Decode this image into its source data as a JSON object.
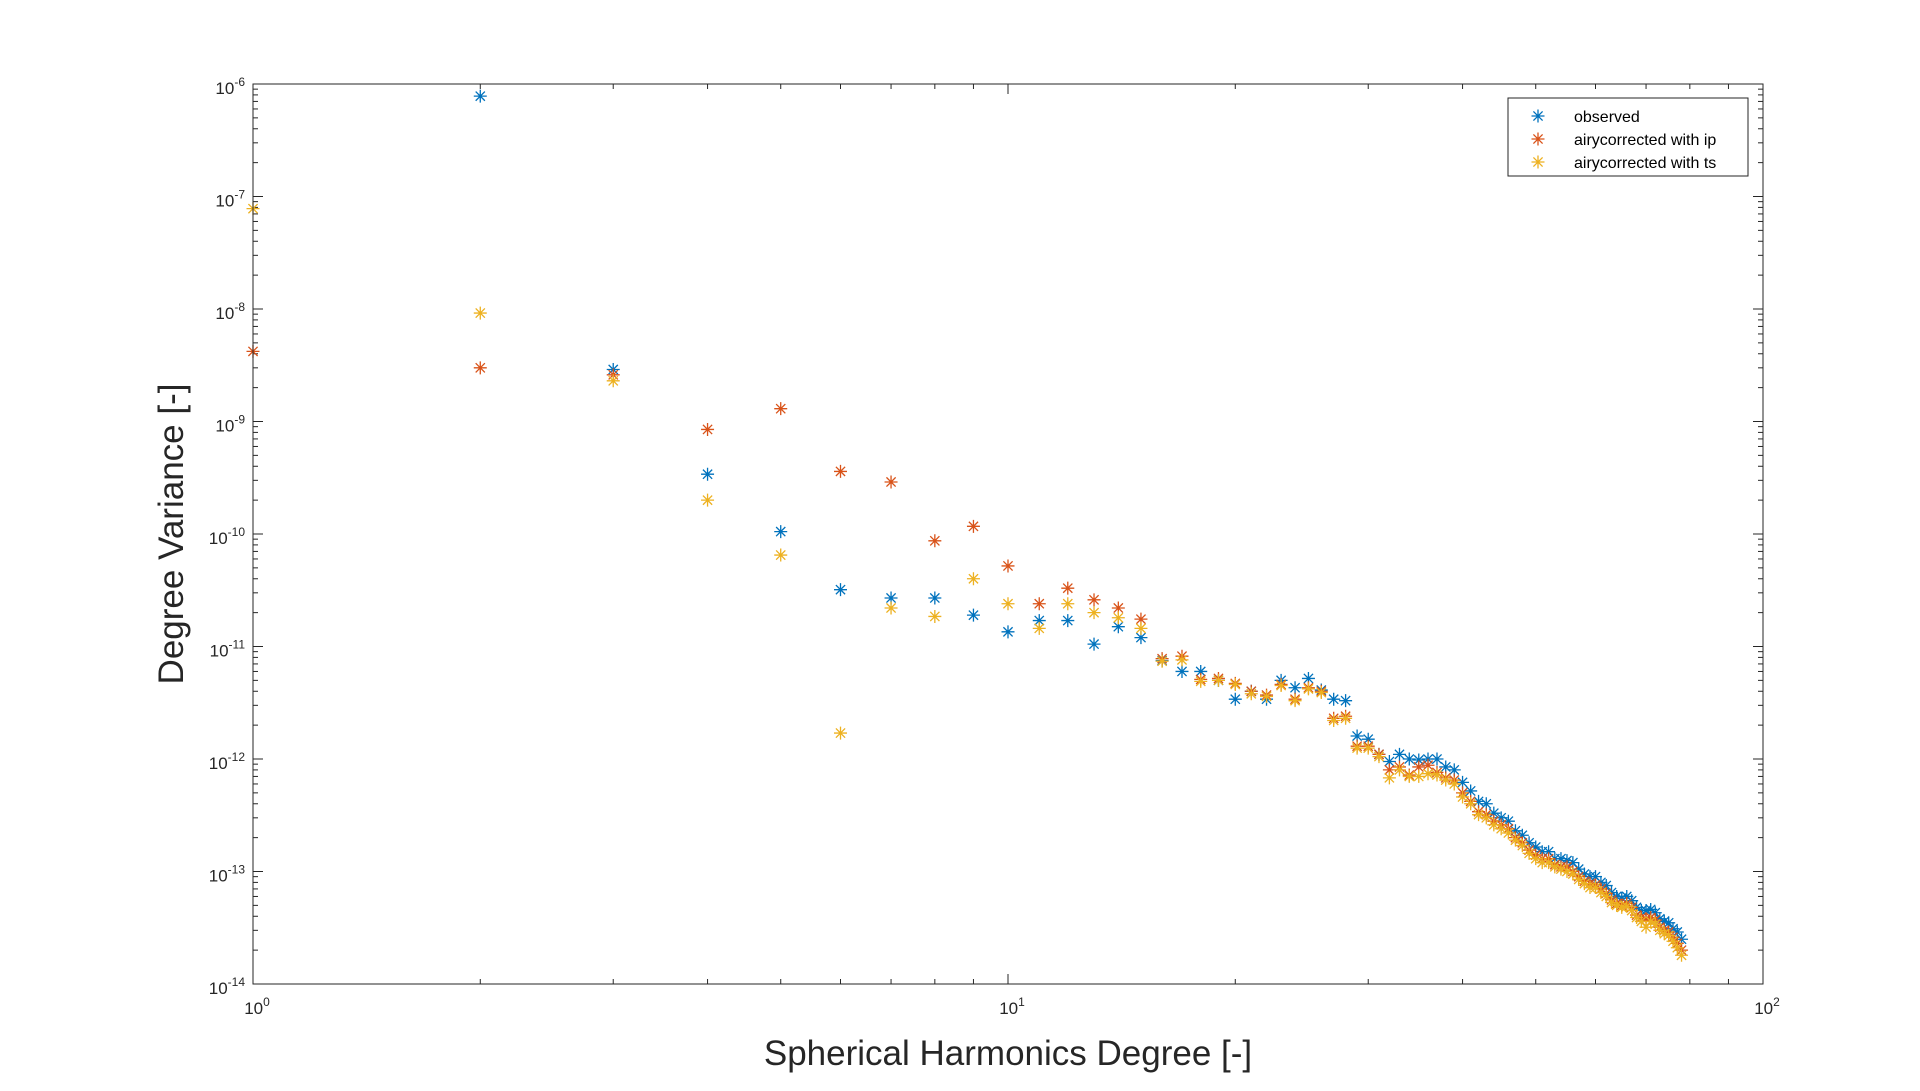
{
  "chart_data": {
    "type": "scatter",
    "title": "",
    "xlabel": "Spherical Harmonics Degree [-]",
    "ylabel": "Degree Variance [-]",
    "xscale": "log",
    "yscale": "log",
    "xlim": [
      1,
      100
    ],
    "ylim": [
      1e-14,
      1e-06
    ],
    "grid": false,
    "legend_position": "top-right",
    "marker": "asterisk",
    "x_ticks": [
      {
        "base": "10",
        "exp": "0",
        "value": 1
      },
      {
        "base": "10",
        "exp": "1",
        "value": 10
      },
      {
        "base": "10",
        "exp": "2",
        "value": 100
      }
    ],
    "y_ticks": [
      {
        "base": "10",
        "exp": "-6",
        "value": 1e-06
      },
      {
        "base": "10",
        "exp": "-7",
        "value": 1e-07
      },
      {
        "base": "10",
        "exp": "-8",
        "value": 1e-08
      },
      {
        "base": "10",
        "exp": "-9",
        "value": 1e-09
      },
      {
        "base": "10",
        "exp": "-10",
        "value": 1e-10
      },
      {
        "base": "10",
        "exp": "-11",
        "value": 1e-11
      },
      {
        "base": "10",
        "exp": "-12",
        "value": 1e-12
      },
      {
        "base": "10",
        "exp": "-13",
        "value": 1e-13
      },
      {
        "base": "10",
        "exp": "-14",
        "value": 1e-14
      }
    ],
    "series": [
      {
        "name": "observed",
        "color": "#0072BD",
        "points": [
          [
            2,
            7.8e-07
          ],
          [
            3,
            2.9e-09
          ],
          [
            4,
            3.4e-10
          ],
          [
            5,
            1.05e-10
          ],
          [
            6,
            3.2e-11
          ],
          [
            7,
            2.7e-11
          ],
          [
            8,
            2.7e-11
          ],
          [
            9,
            1.9e-11
          ],
          [
            10,
            1.35e-11
          ],
          [
            11,
            1.7e-11
          ],
          [
            12,
            1.7e-11
          ],
          [
            13,
            1.05e-11
          ],
          [
            14,
            1.5e-11
          ],
          [
            15,
            1.2e-11
          ],
          [
            16,
            7.5e-12
          ],
          [
            17,
            6e-12
          ],
          [
            18,
            6e-12
          ],
          [
            19,
            5e-12
          ],
          [
            20,
            3.4e-12
          ],
          [
            21,
            4e-12
          ],
          [
            22,
            3.4e-12
          ],
          [
            23,
            5e-12
          ],
          [
            24,
            4.3e-12
          ],
          [
            25,
            5.2e-12
          ],
          [
            26,
            4.1e-12
          ],
          [
            27,
            3.4e-12
          ],
          [
            28,
            3.3e-12
          ],
          [
            29,
            1.6e-12
          ],
          [
            30,
            1.5e-12
          ],
          [
            31,
            1.1e-12
          ],
          [
            32,
            9.5e-13
          ],
          [
            33,
            1.1e-12
          ],
          [
            34,
            1e-12
          ],
          [
            35,
            9.8e-13
          ],
          [
            36,
            1e-12
          ],
          [
            37,
            1e-12
          ],
          [
            38,
            8.5e-13
          ],
          [
            39,
            8e-13
          ],
          [
            40,
            6.2e-13
          ],
          [
            41,
            5.2e-13
          ],
          [
            42,
            4.2e-13
          ],
          [
            43,
            4e-13
          ],
          [
            44,
            3.3e-13
          ],
          [
            45,
            3e-13
          ],
          [
            46,
            2.8e-13
          ],
          [
            47,
            2.3e-13
          ],
          [
            48,
            2.1e-13
          ],
          [
            49,
            1.8e-13
          ],
          [
            50,
            1.65e-13
          ],
          [
            51,
            1.5e-13
          ],
          [
            52,
            1.5e-13
          ],
          [
            53,
            1.3e-13
          ],
          [
            54,
            1.3e-13
          ],
          [
            55,
            1.25e-13
          ],
          [
            56,
            1.2e-13
          ],
          [
            57,
            1.05e-13
          ],
          [
            58,
            9.5e-14
          ],
          [
            59,
            9e-14
          ],
          [
            60,
            9e-14
          ],
          [
            61,
            8e-14
          ],
          [
            62,
            7.5e-14
          ],
          [
            63,
            6.5e-14
          ],
          [
            64,
            6e-14
          ],
          [
            65,
            5.8e-14
          ],
          [
            66,
            6e-14
          ],
          [
            67,
            5.5e-14
          ],
          [
            68,
            4.8e-14
          ],
          [
            69,
            4.5e-14
          ],
          [
            70,
            4.5e-14
          ],
          [
            71,
            4.6e-14
          ],
          [
            72,
            4.3e-14
          ],
          [
            73,
            3.8e-14
          ],
          [
            74,
            3.6e-14
          ],
          [
            75,
            3.5e-14
          ],
          [
            76,
            3.1e-14
          ],
          [
            77,
            2.9e-14
          ],
          [
            78,
            2.5e-14
          ]
        ]
      },
      {
        "name": "airycorrected with ip",
        "color": "#D95319",
        "points": [
          [
            1,
            4.2e-09
          ],
          [
            2,
            3e-09
          ],
          [
            3,
            2.6e-09
          ],
          [
            4,
            8.5e-10
          ],
          [
            5,
            1.3e-09
          ],
          [
            6,
            3.6e-10
          ],
          [
            7,
            2.9e-10
          ],
          [
            8,
            8.7e-11
          ],
          [
            9,
            1.17e-10
          ],
          [
            10,
            5.2e-11
          ],
          [
            11,
            2.4e-11
          ],
          [
            12,
            3.3e-11
          ],
          [
            13,
            2.6e-11
          ],
          [
            14,
            2.2e-11
          ],
          [
            15,
            1.75e-11
          ],
          [
            16,
            7.8e-12
          ],
          [
            17,
            8.2e-12
          ],
          [
            18,
            5.1e-12
          ],
          [
            19,
            5.2e-12
          ],
          [
            20,
            4.7e-12
          ],
          [
            21,
            4e-12
          ],
          [
            22,
            3.7e-12
          ],
          [
            23,
            4.6e-12
          ],
          [
            24,
            3.4e-12
          ],
          [
            25,
            4.3e-12
          ],
          [
            26,
            4e-12
          ],
          [
            27,
            2.3e-12
          ],
          [
            28,
            2.4e-12
          ],
          [
            29,
            1.3e-12
          ],
          [
            30,
            1.3e-12
          ],
          [
            31,
            1.1e-12
          ],
          [
            32,
            8e-13
          ],
          [
            33,
            8.5e-13
          ],
          [
            34,
            7.2e-13
          ],
          [
            35,
            8.5e-13
          ],
          [
            36,
            8.8e-13
          ],
          [
            37,
            7.6e-13
          ],
          [
            38,
            6.8e-13
          ],
          [
            39,
            6.5e-13
          ],
          [
            40,
            5e-13
          ],
          [
            41,
            4.2e-13
          ],
          [
            42,
            3.4e-13
          ],
          [
            43,
            3.2e-13
          ],
          [
            44,
            2.8e-13
          ],
          [
            45,
            2.6e-13
          ],
          [
            46,
            2.4e-13
          ],
          [
            47,
            2e-13
          ],
          [
            48,
            1.8e-13
          ],
          [
            49,
            1.55e-13
          ],
          [
            50,
            1.4e-13
          ],
          [
            51,
            1.3e-13
          ],
          [
            52,
            1.3e-13
          ],
          [
            53,
            1.15e-13
          ],
          [
            54,
            1.1e-13
          ],
          [
            55,
            1.1e-13
          ],
          [
            56,
            1e-13
          ],
          [
            57,
            9e-14
          ],
          [
            58,
            8.2e-14
          ],
          [
            59,
            7.8e-14
          ],
          [
            60,
            7.6e-14
          ],
          [
            61,
            7e-14
          ],
          [
            62,
            6.4e-14
          ],
          [
            63,
            5.6e-14
          ],
          [
            64,
            5.2e-14
          ],
          [
            65,
            5e-14
          ],
          [
            66,
            5.2e-14
          ],
          [
            67,
            4.8e-14
          ],
          [
            68,
            4.1e-14
          ],
          [
            69,
            3.9e-14
          ],
          [
            70,
            3.8e-14
          ],
          [
            71,
            3.9e-14
          ],
          [
            72,
            3.7e-14
          ],
          [
            73,
            3.2e-14
          ],
          [
            74,
            3e-14
          ],
          [
            75,
            2.9e-14
          ],
          [
            76,
            2.6e-14
          ],
          [
            77,
            2.3e-14
          ],
          [
            78,
            2e-14
          ]
        ]
      },
      {
        "name": "airycorrected with ts",
        "color": "#EDB120",
        "points": [
          [
            1,
            7.8e-08
          ],
          [
            2,
            9.2e-09
          ],
          [
            3,
            2.3e-09
          ],
          [
            4,
            2e-10
          ],
          [
            5,
            6.5e-11
          ],
          [
            6,
            1.7e-12
          ],
          [
            7,
            2.2e-11
          ],
          [
            8,
            1.85e-11
          ],
          [
            9,
            4e-11
          ],
          [
            10,
            2.4e-11
          ],
          [
            11,
            1.45e-11
          ],
          [
            12,
            2.4e-11
          ],
          [
            13,
            2e-11
          ],
          [
            14,
            1.8e-11
          ],
          [
            15,
            1.45e-11
          ],
          [
            16,
            7.4e-12
          ],
          [
            17,
            7.6e-12
          ],
          [
            18,
            4.9e-12
          ],
          [
            19,
            5e-12
          ],
          [
            20,
            4.6e-12
          ],
          [
            21,
            3.8e-12
          ],
          [
            22,
            3.6e-12
          ],
          [
            23,
            4.5e-12
          ],
          [
            24,
            3.3e-12
          ],
          [
            25,
            4.2e-12
          ],
          [
            26,
            3.9e-12
          ],
          [
            27,
            2.2e-12
          ],
          [
            28,
            2.3e-12
          ],
          [
            29,
            1.25e-12
          ],
          [
            30,
            1.25e-12
          ],
          [
            31,
            1.05e-12
          ],
          [
            32,
            6.8e-13
          ],
          [
            33,
            8e-13
          ],
          [
            34,
            7e-13
          ],
          [
            35,
            7e-13
          ],
          [
            36,
            7.4e-13
          ],
          [
            37,
            7.2e-13
          ],
          [
            38,
            6.5e-13
          ],
          [
            39,
            6e-13
          ],
          [
            40,
            4.6e-13
          ],
          [
            41,
            4e-13
          ],
          [
            42,
            3.2e-13
          ],
          [
            43,
            3e-13
          ],
          [
            44,
            2.6e-13
          ],
          [
            45,
            2.4e-13
          ],
          [
            46,
            2.2e-13
          ],
          [
            47,
            1.9e-13
          ],
          [
            48,
            1.7e-13
          ],
          [
            49,
            1.45e-13
          ],
          [
            50,
            1.3e-13
          ],
          [
            51,
            1.2e-13
          ],
          [
            52,
            1.2e-13
          ],
          [
            53,
            1.1e-13
          ],
          [
            54,
            1.05e-13
          ],
          [
            55,
            1e-13
          ],
          [
            56,
            9.5e-14
          ],
          [
            57,
            8.5e-14
          ],
          [
            58,
            7.8e-14
          ],
          [
            59,
            7.2e-14
          ],
          [
            60,
            7.2e-14
          ],
          [
            61,
            6.5e-14
          ],
          [
            62,
            6e-14
          ],
          [
            63,
            5.3e-14
          ],
          [
            64,
            5e-14
          ],
          [
            65,
            4.8e-14
          ],
          [
            66,
            4.9e-14
          ],
          [
            67,
            4.5e-14
          ],
          [
            68,
            3.9e-14
          ],
          [
            69,
            3.6e-14
          ],
          [
            70,
            3.2e-14
          ],
          [
            71,
            3.6e-14
          ],
          [
            72,
            3.4e-14
          ],
          [
            73,
            3e-14
          ],
          [
            74,
            2.8e-14
          ],
          [
            75,
            2.7e-14
          ],
          [
            76,
            2.4e-14
          ],
          [
            77,
            2.1e-14
          ],
          [
            78,
            1.8e-14
          ]
        ]
      }
    ]
  }
}
